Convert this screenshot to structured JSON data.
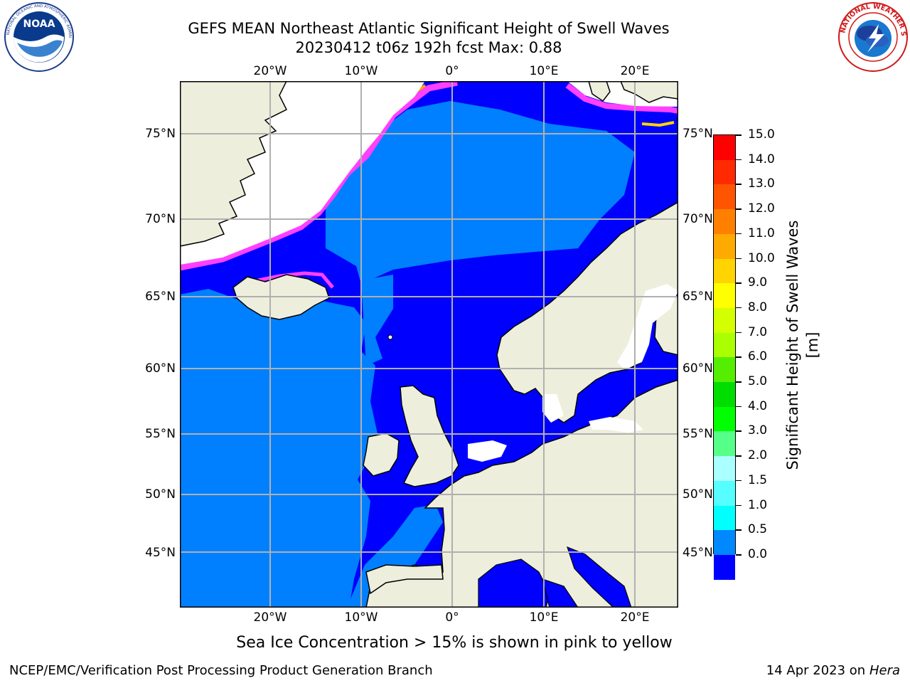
{
  "header": {
    "title_line1": "GEFS MEAN Northeast Atlantic Significant Height of Swell Waves",
    "title_line2": "20230412 t06z 192h fcst   Max: 0.88"
  },
  "logos": {
    "left": {
      "text": "NOAA",
      "ring_text": "NATIONAL OCEANIC AND ATMOSPHERIC ADMINISTRATION · U.S. DEPARTMENT OF COMMERCE"
    },
    "right": {
      "ring_text": "NATIONAL WEATHER SERVICE"
    }
  },
  "map": {
    "lon_ticks": [
      "20°W",
      "10°W",
      "0°",
      "10°E",
      "20°E"
    ],
    "lat_ticks": [
      "75°N",
      "70°N",
      "65°N",
      "60°N",
      "55°N",
      "50°N",
      "45°N"
    ],
    "colors": {
      "ocean_low": "#0000ff",
      "ocean_mid": "#0080ff",
      "land": "#eeeedd",
      "ice_pink": "#ff40ff",
      "ice_orange": "#ffa500",
      "ice_yellow": "#ffff00",
      "grid": "#b0b0b0"
    }
  },
  "colorbar": {
    "label": "Significant Height of Swell Waves [m]",
    "tick_labels": [
      "15.0",
      "14.0",
      "13.0",
      "12.0",
      "11.0",
      "10.0",
      "9.0",
      "8.0",
      "7.0",
      "6.0",
      "5.0",
      "4.0",
      "3.0",
      "2.0",
      "1.5",
      "1.0",
      "0.5",
      "0.0"
    ],
    "colors": [
      "#ff0000",
      "#ff2a00",
      "#ff5500",
      "#ff8000",
      "#ffaa00",
      "#ffd400",
      "#ffff00",
      "#d4ff00",
      "#aaff00",
      "#55ee00",
      "#00dd00",
      "#00ff00",
      "#55ff88",
      "#aaffff",
      "#55ffff",
      "#00ffff",
      "#0088ff",
      "#0000ff"
    ]
  },
  "subtitle": "Sea Ice Concentration > 15% is shown in pink to yellow",
  "footer": {
    "left": "NCEP/EMC/Verification Post Processing Product Generation Branch",
    "right_date": "14 Apr 2023 on",
    "right_host": "Hera"
  }
}
